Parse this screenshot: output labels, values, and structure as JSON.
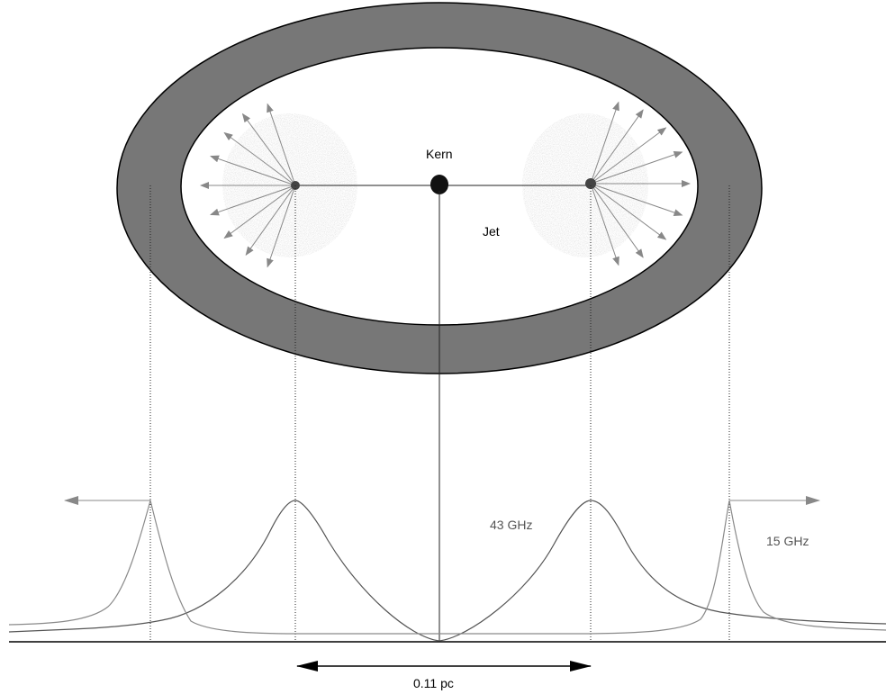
{
  "labels": {
    "core": "Kern",
    "jet": "Jet",
    "freq_high": "43 GHz",
    "freq_low": "15 GHz",
    "scale": "0.11 pc"
  },
  "colors": {
    "torus": "#777777",
    "cloud": "#c4c4c4",
    "arrows": "#888888",
    "lines": "#222222",
    "curve_43": "#555555",
    "curve_15": "#8a8a8a"
  }
}
